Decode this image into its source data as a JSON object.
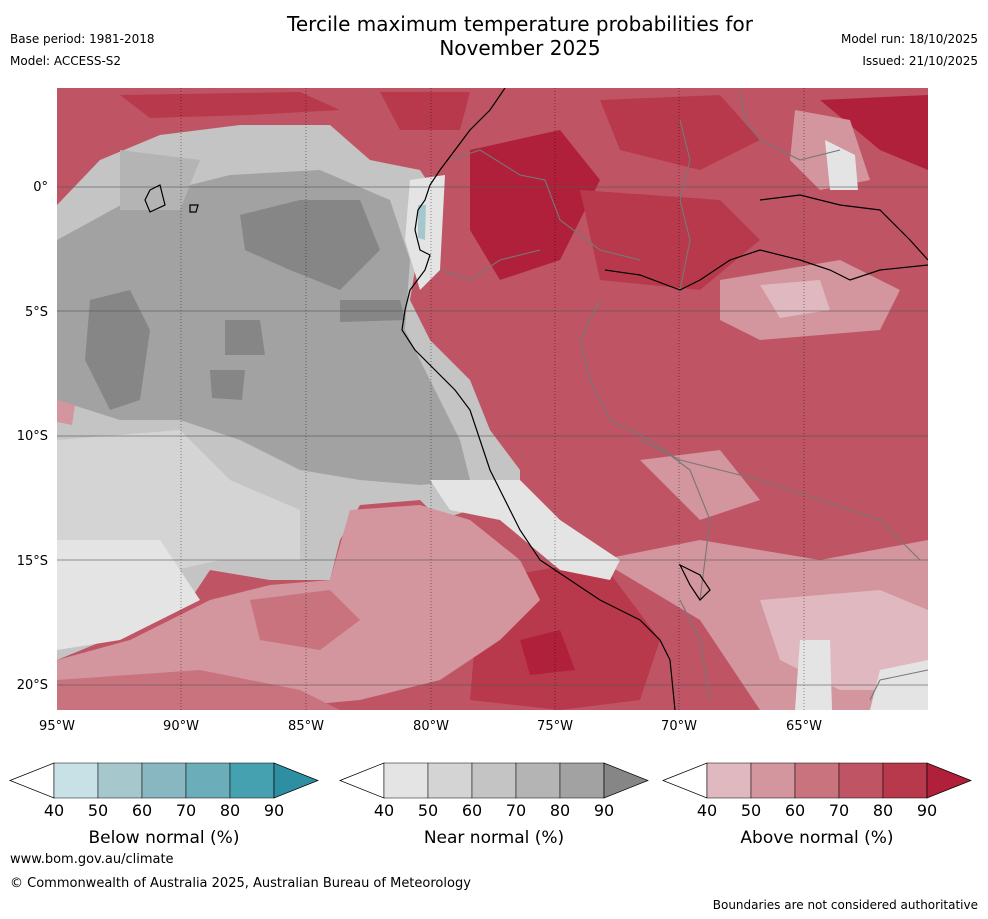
{
  "header": {
    "title_line1": "Tercile maximum temperature probabilities for",
    "title_line2": "November 2025",
    "base_period": "Base period: 1981-2018",
    "model": "Model: ACCESS-S2",
    "model_run": "Model run: 18/10/2025",
    "issued": "Issued: 21/10/2025"
  },
  "map": {
    "lat_labels": [
      "0°",
      "5°S",
      "10°S",
      "15°S",
      "20°S"
    ],
    "lon_labels": [
      "95°W",
      "90°W",
      "85°W",
      "80°W",
      "75°W",
      "70°W",
      "65°W"
    ]
  },
  "legends": {
    "ticks": [
      "40",
      "50",
      "60",
      "70",
      "80",
      "90"
    ],
    "below": {
      "label": "Below normal (%)",
      "colors": [
        "#ffffff",
        "#c8e1e6",
        "#a6c8cd",
        "#89b7c1",
        "#6badb8",
        "#45a1b0",
        "#2e8fa2"
      ]
    },
    "near": {
      "label": "Near normal (%)",
      "colors": [
        "#ffffff",
        "#e4e4e4",
        "#d4d4d4",
        "#c4c4c4",
        "#b4b4b4",
        "#a2a2a2",
        "#868686"
      ]
    },
    "above": {
      "label": "Above normal (%)",
      "colors": [
        "#ffffff",
        "#e0b8bf",
        "#d3959e",
        "#c9737f",
        "#bf5564",
        "#b8394b",
        "#b0203a"
      ]
    }
  },
  "footer": {
    "website": "www.bom.gov.au/climate",
    "copyright": "© Commonwealth of Australia 2025, Australian Bureau of Meteorology",
    "disclaimer": "Boundaries are not considered authoritative"
  }
}
